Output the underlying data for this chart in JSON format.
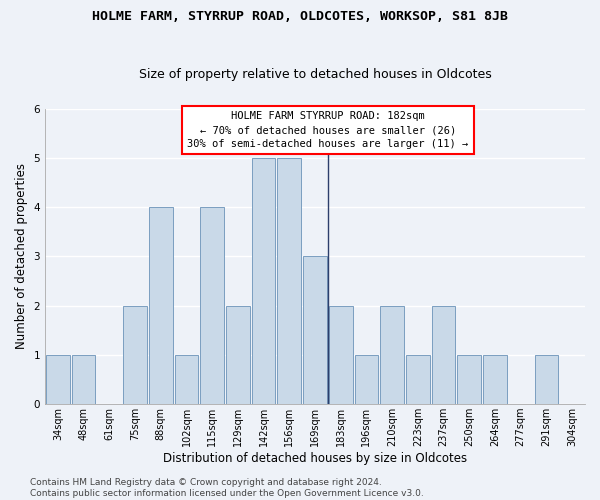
{
  "title": "HOLME FARM, STYRRUP ROAD, OLDCOTES, WORKSOP, S81 8JB",
  "subtitle": "Size of property relative to detached houses in Oldcotes",
  "xlabel": "Distribution of detached houses by size in Oldcotes",
  "ylabel": "Number of detached properties",
  "categories": [
    "34sqm",
    "48sqm",
    "61sqm",
    "75sqm",
    "88sqm",
    "102sqm",
    "115sqm",
    "129sqm",
    "142sqm",
    "156sqm",
    "169sqm",
    "183sqm",
    "196sqm",
    "210sqm",
    "223sqm",
    "237sqm",
    "250sqm",
    "264sqm",
    "277sqm",
    "291sqm",
    "304sqm"
  ],
  "values": [
    1,
    1,
    0,
    2,
    4,
    1,
    4,
    2,
    5,
    5,
    3,
    2,
    1,
    2,
    1,
    2,
    1,
    1,
    0,
    1,
    0
  ],
  "bar_color": "#c9d9e8",
  "bar_edge_color": "#7a9ec0",
  "vline_x_index": 11,
  "vline_color": "#2c3e6b",
  "annotation_text": "HOLME FARM STYRRUP ROAD: 182sqm\n← 70% of detached houses are smaller (26)\n30% of semi-detached houses are larger (11) →",
  "annotation_box_color": "white",
  "annotation_box_edge_color": "red",
  "ylim": [
    0,
    6
  ],
  "yticks": [
    0,
    1,
    2,
    3,
    4,
    5,
    6
  ],
  "footer": "Contains HM Land Registry data © Crown copyright and database right 2024.\nContains public sector information licensed under the Open Government Licence v3.0.",
  "background_color": "#eef2f8",
  "grid_color": "white",
  "title_fontsize": 9.5,
  "subtitle_fontsize": 9,
  "axis_label_fontsize": 8.5,
  "tick_fontsize": 7,
  "footer_fontsize": 6.5,
  "annotation_fontsize": 7.5
}
